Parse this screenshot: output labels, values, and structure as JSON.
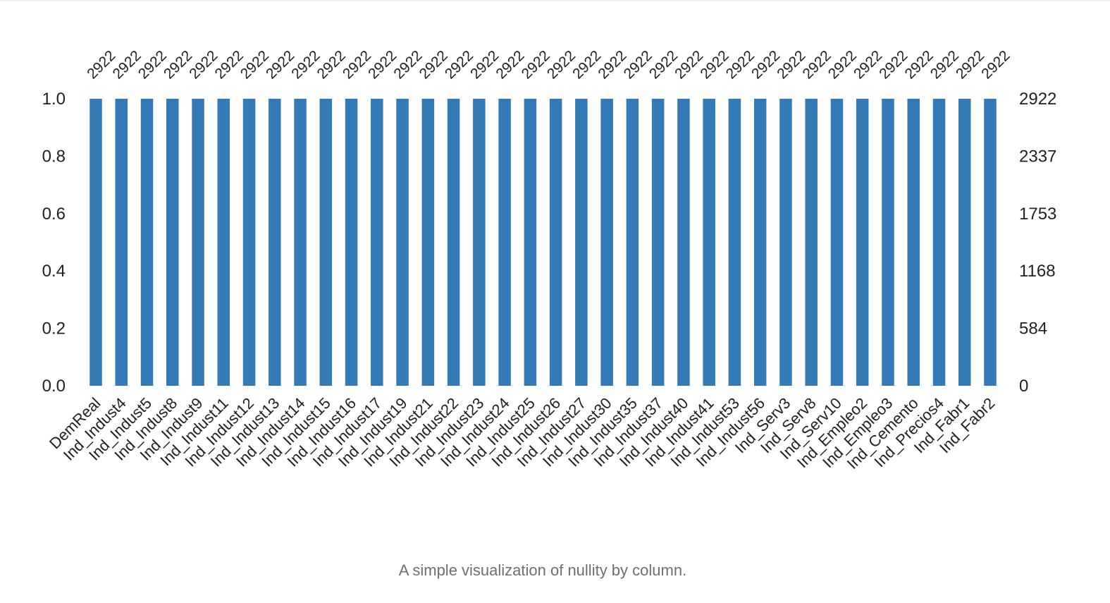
{
  "caption": "A simple visualization of nullity by column.",
  "chart_data": {
    "type": "bar",
    "categories": [
      "DemReal",
      "Ind_Indust4",
      "Ind_Indust5",
      "Ind_Indust8",
      "Ind_Indust9",
      "Ind_Indust11",
      "Ind_Indust12",
      "Ind_Indust13",
      "Ind_Indust14",
      "Ind_Indust15",
      "Ind_Indust16",
      "Ind_Indust17",
      "Ind_Indust19",
      "Ind_Indust21",
      "Ind_Indust22",
      "Ind_Indust23",
      "Ind_Indust24",
      "Ind_Indust25",
      "Ind_Indust26",
      "Ind_Indust27",
      "Ind_Indust30",
      "Ind_Indust35",
      "Ind_Indust37",
      "Ind_Indust40",
      "Ind_Indust41",
      "Ind_Indust53",
      "Ind_Indust56",
      "Ind_Serv3",
      "Ind_Serv8",
      "Ind_Serv10",
      "Ind_Empleo2",
      "Ind_Empleo3",
      "Ind_Cemento",
      "Ind_Precios4",
      "Ind_Fabr1",
      "Ind_Fabr2"
    ],
    "values": [
      1.0,
      1.0,
      1.0,
      1.0,
      1.0,
      1.0,
      1.0,
      1.0,
      1.0,
      1.0,
      1.0,
      1.0,
      1.0,
      1.0,
      1.0,
      1.0,
      1.0,
      1.0,
      1.0,
      1.0,
      1.0,
      1.0,
      1.0,
      1.0,
      1.0,
      1.0,
      1.0,
      1.0,
      1.0,
      1.0,
      1.0,
      1.0,
      1.0,
      1.0,
      1.0,
      1.0
    ],
    "counts": [
      2922,
      2922,
      2922,
      2922,
      2922,
      2922,
      2922,
      2922,
      2922,
      2922,
      2922,
      2922,
      2922,
      2922,
      2922,
      2922,
      2922,
      2922,
      2922,
      2922,
      2922,
      2922,
      2922,
      2922,
      2922,
      2922,
      2922,
      2922,
      2922,
      2922,
      2922,
      2922,
      2922,
      2922,
      2922,
      2922
    ],
    "ylim": [
      0,
      1
    ],
    "yticks": [
      "0.0",
      "0.2",
      "0.4",
      "0.6",
      "0.8",
      "1.0"
    ],
    "right_ticks": [
      "0",
      "584",
      "1168",
      "1753",
      "2337",
      "2922"
    ],
    "bar_color": "#337ab7",
    "grid": false,
    "title": "",
    "xlabel": "",
    "ylabel": ""
  }
}
